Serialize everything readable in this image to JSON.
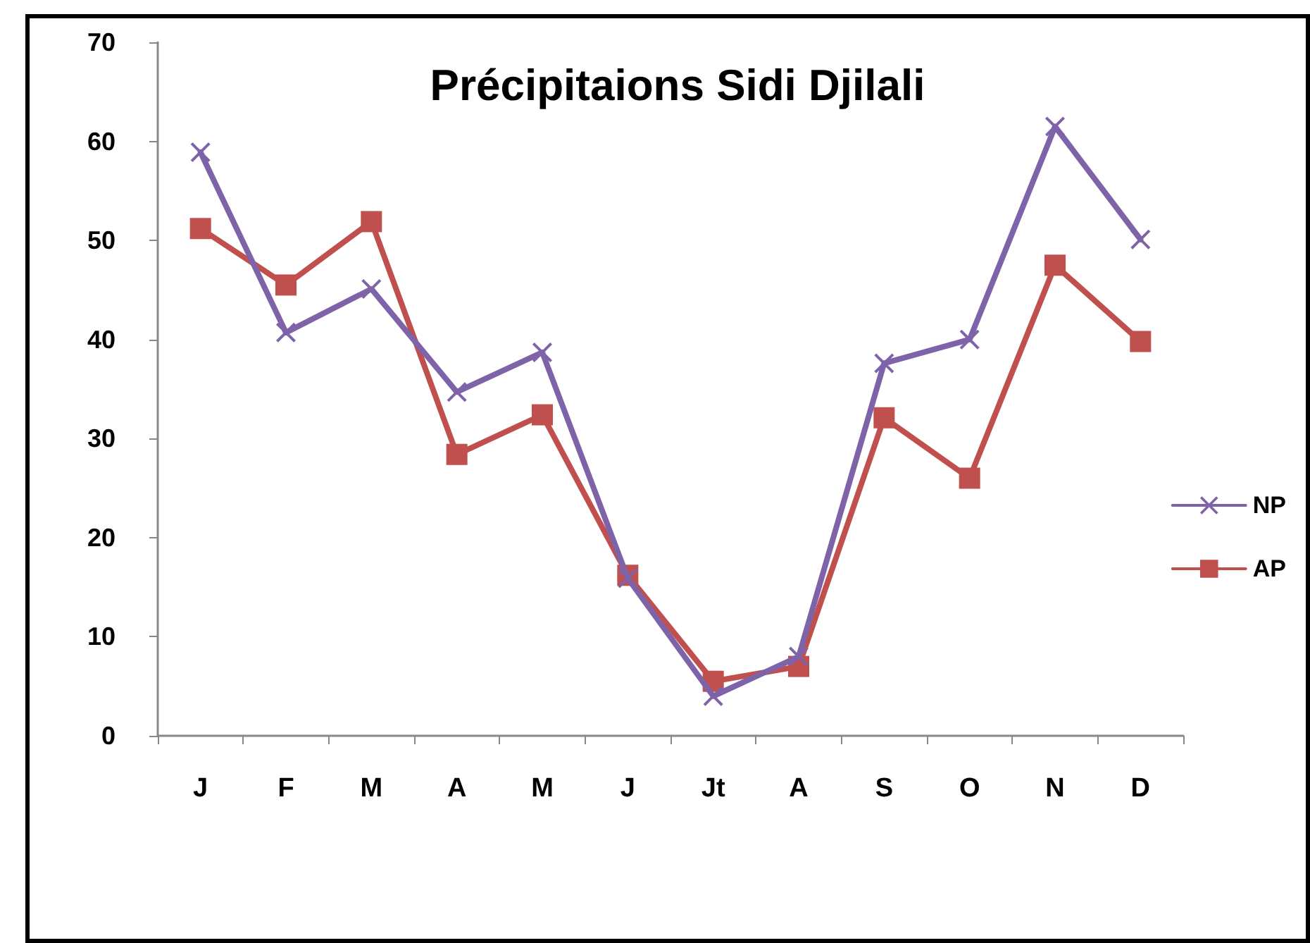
{
  "chart_data": {
    "type": "line",
    "title": "Précipitaions Sidi Djilali",
    "categories": [
      "J",
      "F",
      "M",
      "A",
      "M",
      "J",
      "Jt",
      "A",
      "S",
      "O",
      "N",
      "D"
    ],
    "series": [
      {
        "name": "NP",
        "color": "#7f63a8",
        "marker": "cross",
        "values": [
          58.9,
          40.7,
          45.1,
          34.7,
          38.7,
          15.9,
          4.0,
          8.0,
          37.6,
          40.0,
          61.5,
          50.1
        ]
      },
      {
        "name": "AP",
        "color": "#c0504d",
        "marker": "square",
        "values": [
          51.2,
          45.5,
          51.9,
          28.4,
          32.4,
          16.2,
          5.5,
          7.0,
          32.1,
          26.0,
          47.5,
          39.8
        ]
      }
    ],
    "ylim": [
      0,
      70
    ],
    "yticks": [
      0,
      10,
      20,
      30,
      40,
      50,
      60,
      70
    ],
    "grid": false,
    "legend": "right",
    "line_style": "solid"
  }
}
